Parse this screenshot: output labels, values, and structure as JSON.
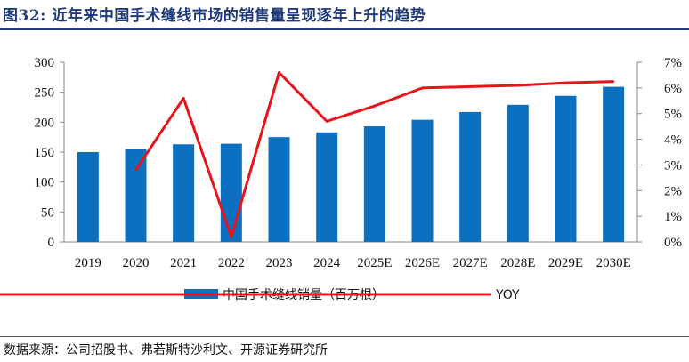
{
  "header": {
    "title": "图32:  近年来中国手术缝线市场的销售量呈现逐年上升的趋势"
  },
  "footer": {
    "source": "数据来源：公司招股书、弗若斯特沙利文、开源证券研究所"
  },
  "chart_data": {
    "type": "bar",
    "categories": [
      "2019",
      "2020",
      "2021",
      "2022",
      "2023",
      "2024",
      "2025E",
      "2026E",
      "2027E",
      "2028E",
      "2029E",
      "2030E"
    ],
    "x_tick_labels": [
      "2019",
      "2020",
      "2021",
      "2022",
      "2023",
      "2024",
      "2025E",
      "2026E",
      "2027E",
      "2028E",
      "2029E",
      "2030E"
    ],
    "series": [
      {
        "name": "中国手术缝线销量（百万根）",
        "type": "bar",
        "axis": "left",
        "color": "#0c70c0",
        "values": [
          150,
          155,
          163,
          164,
          175,
          183,
          193,
          204,
          217,
          229,
          244,
          259
        ]
      },
      {
        "name": "YOY",
        "type": "line",
        "axis": "right",
        "color": "#e8141b",
        "values": [
          null,
          2.8,
          5.6,
          0.2,
          6.6,
          4.7,
          5.3,
          6.0,
          6.05,
          6.1,
          6.2,
          6.25
        ]
      }
    ],
    "y_left": {
      "min": 0,
      "max": 300,
      "ticks": [
        "0",
        "50",
        "100",
        "150",
        "200",
        "250",
        "300"
      ]
    },
    "y_right": {
      "min": 0,
      "max": 7,
      "ticks": [
        "0%",
        "1%",
        "2%",
        "3%",
        "4%",
        "5%",
        "6%",
        "7%"
      ]
    },
    "grid": false,
    "legend_position": "bottom"
  }
}
